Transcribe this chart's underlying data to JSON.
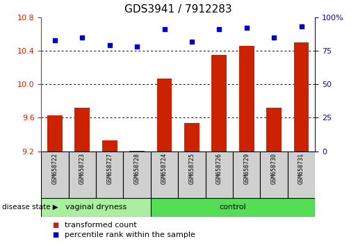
{
  "title": "GDS3941 / 7912283",
  "samples": [
    "GSM658722",
    "GSM658723",
    "GSM658727",
    "GSM658728",
    "GSM658724",
    "GSM658725",
    "GSM658726",
    "GSM658729",
    "GSM658730",
    "GSM658731"
  ],
  "bar_values": [
    9.63,
    9.72,
    9.33,
    9.21,
    10.07,
    9.54,
    10.35,
    10.46,
    9.72,
    10.5
  ],
  "blue_values": [
    83,
    85,
    79,
    78,
    91,
    82,
    91,
    92,
    85,
    93
  ],
  "bar_color": "#cc2200",
  "blue_color": "#0000cc",
  "ylim_left": [
    9.2,
    10.8
  ],
  "ylim_right": [
    0,
    100
  ],
  "yticks_left": [
    9.2,
    9.6,
    10.0,
    10.4,
    10.8
  ],
  "yticks_right": [
    0,
    25,
    50,
    75,
    100
  ],
  "grid_values": [
    9.6,
    10.0,
    10.4
  ],
  "vaginal_dryness_count": 4,
  "control_count": 6,
  "group_label_vaginal": "vaginal dryness",
  "group_label_control": "control",
  "disease_state_label": "disease state",
  "legend_red_label": "transformed count",
  "legend_blue_label": "percentile rank within the sample",
  "left_axis_color": "#cc2200",
  "right_axis_color": "#0000cc",
  "bg_sample_cell": "#d0d0d0",
  "bg_vaginal": "#aaeea0",
  "bg_control": "#55dd55",
  "bar_bottom": 9.2,
  "blue_marker": "s",
  "blue_markersize": 5,
  "title_fontsize": 11,
  "tick_fontsize": 8,
  "sample_fontsize": 6,
  "group_fontsize": 8,
  "legend_fontsize": 8
}
